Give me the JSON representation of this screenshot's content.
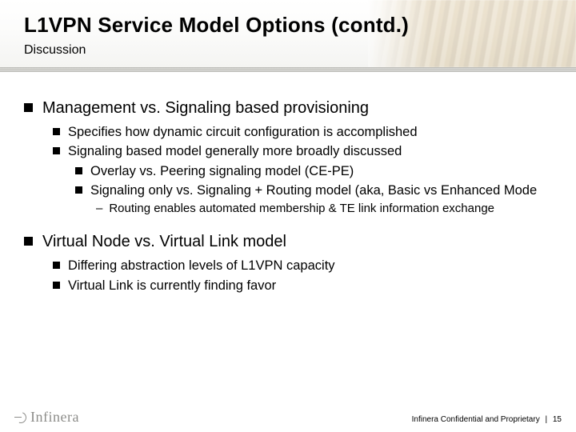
{
  "header": {
    "title": "L1VPN Service Model Options (contd.)",
    "subtitle": "Discussion"
  },
  "bullets": {
    "b1": {
      "text": "Management vs. Signaling based provisioning",
      "sub": {
        "s1": "Specifies how dynamic circuit configuration is accomplished",
        "s2": "Signaling based model generally more broadly discussed",
        "s2sub": {
          "t1": "Overlay vs. Peering signaling model (CE-PE)",
          "t2": "Signaling only vs. Signaling + Routing model (aka, Basic vs Enhanced Mode",
          "t2sub": {
            "d1": "Routing enables automated membership & TE link information exchange"
          }
        }
      }
    },
    "b2": {
      "text": "Virtual Node vs. Virtual Link model",
      "sub": {
        "s1": "Differing abstraction levels of L1VPN capacity",
        "s2": "Virtual Link is currently finding favor"
      }
    }
  },
  "footer": {
    "confidentiality": "Infinera Confidential and Proprietary",
    "separator": "|",
    "page": "15"
  },
  "logo": {
    "text": "Infinera"
  },
  "colors": {
    "bullet_color": "#000000",
    "text_color": "#000000",
    "logo_color": "#8d8d8a",
    "header_sep": "#c8c8c4",
    "background": "#ffffff"
  },
  "fonts": {
    "title_pt": 26,
    "subtitle_pt": 16,
    "l1_pt": 20,
    "l2_pt": 16.5,
    "l4_pt": 15,
    "footer_pt": 10
  }
}
